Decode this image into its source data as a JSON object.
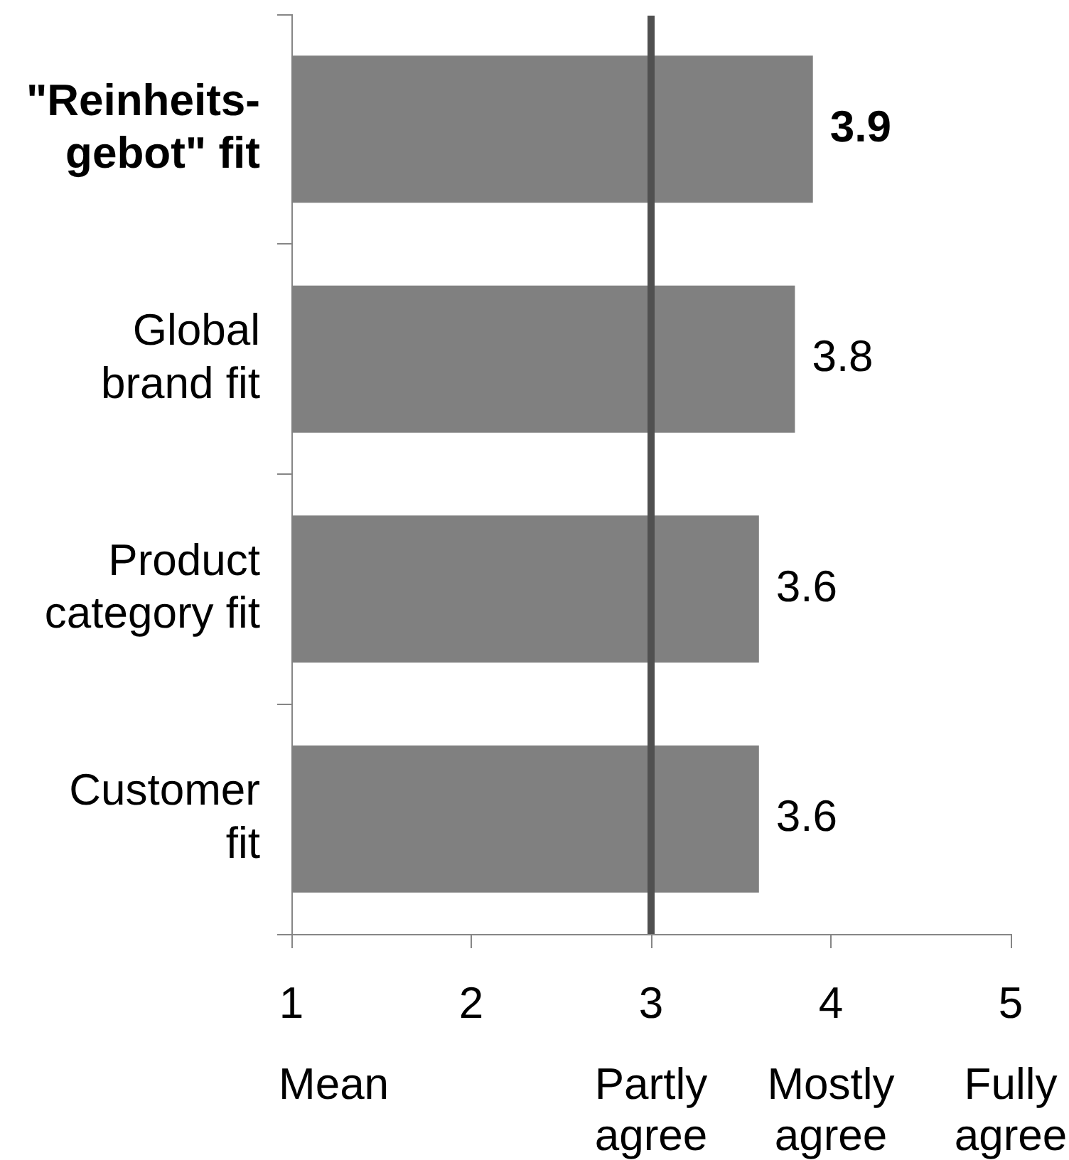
{
  "chart_data": {
    "type": "bar",
    "orientation": "horizontal",
    "categories": [
      "\"Reinheits-gebot\" fit",
      "Global brand fit",
      "Product category fit",
      "Customer fit"
    ],
    "values": [
      3.9,
      3.8,
      3.6,
      3.6
    ],
    "color": "#808080",
    "xlim": [
      1,
      5
    ],
    "xticks": [
      1,
      2,
      3,
      4,
      5
    ],
    "xlabel": "Mean",
    "annotations": [
      "Partly agree",
      "Mostly agree",
      "Fully agree"
    ],
    "ref_lines": [
      {
        "axis": "x",
        "value": 3,
        "color": "#505050"
      }
    ],
    "data_labels": true,
    "legend": false,
    "grid": false
  }
}
